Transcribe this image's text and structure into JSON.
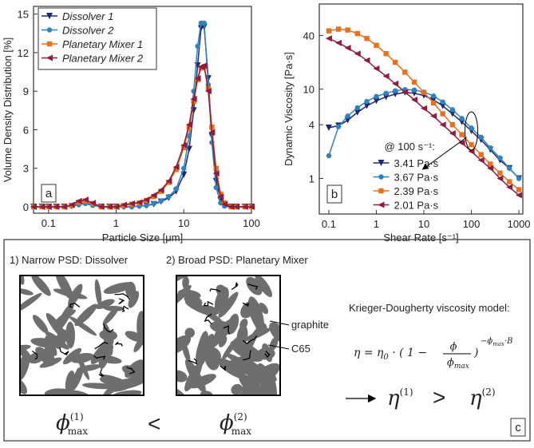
{
  "chart_data": [
    {
      "type": "line",
      "panel_label": "a",
      "x_label": "Particle Size [μm]",
      "y_label": "Volume Density Distribution [%]",
      "xlog": true,
      "xlim": [
        0.06,
        100
      ],
      "xticks": [
        0.1,
        1,
        10,
        100
      ],
      "ylim": [
        -0.5,
        15.6
      ],
      "yticks": [
        0,
        3,
        6,
        9,
        12,
        15
      ],
      "legend": "upper left",
      "x": [
        0.06,
        0.08,
        0.1,
        0.13,
        0.17,
        0.22,
        0.28,
        0.35,
        0.45,
        0.6,
        0.8,
        1,
        1.3,
        1.7,
        2.2,
        2.8,
        3.6,
        4.6,
        6,
        7.7,
        10,
        12,
        14,
        16,
        18,
        20,
        23,
        26,
        30,
        35,
        40,
        50,
        60,
        80,
        100
      ],
      "series": [
        {
          "name": "Dissolver 1",
          "color": "#1b2a6e",
          "marker": "triangle-down",
          "values": [
            0,
            0,
            0,
            0,
            0,
            0.05,
            0.2,
            0.3,
            0.15,
            0,
            0,
            0,
            0,
            0,
            0.05,
            0.1,
            0.2,
            0.4,
            0.7,
            1.2,
            2.5,
            4.5,
            7.5,
            11,
            13.9,
            14,
            10,
            5.5,
            2,
            0.5,
            0.1,
            0,
            0,
            0,
            0
          ]
        },
        {
          "name": "Dissolver 2",
          "color": "#2f82c0",
          "marker": "circle",
          "values": [
            0,
            0,
            0,
            0,
            0,
            0.05,
            0.15,
            0.25,
            0.1,
            0,
            0,
            0,
            0,
            0,
            0.05,
            0.1,
            0.25,
            0.45,
            0.8,
            1.4,
            3,
            5.5,
            9,
            12.5,
            14.3,
            14.3,
            9.5,
            5,
            1.5,
            0.3,
            0.05,
            0,
            0,
            0,
            0
          ]
        },
        {
          "name": "Planetary Mixer 1",
          "color": "#e8701e",
          "marker": "square",
          "values": [
            0,
            0,
            0,
            0,
            0,
            0.1,
            0.35,
            0.45,
            0.25,
            0,
            0,
            0,
            0.1,
            0.2,
            0.3,
            0.5,
            0.8,
            1.2,
            1.9,
            2.9,
            4.6,
            6.2,
            8.2,
            9.9,
            10.8,
            10.9,
            9.2,
            6.2,
            3,
            1,
            0.3,
            0,
            0,
            0,
            0
          ]
        },
        {
          "name": "Planetary Mixer 2",
          "color": "#8f1c3c",
          "marker": "triangle-left",
          "values": [
            0,
            0,
            0,
            0,
            0,
            0.15,
            0.45,
            0.55,
            0.3,
            0,
            0,
            0,
            0.15,
            0.25,
            0.35,
            0.55,
            0.9,
            1.3,
            2,
            3.1,
            4.8,
            6.4,
            8.4,
            10,
            10.9,
            11,
            9,
            5.8,
            2.6,
            0.8,
            0.2,
            0,
            0,
            0,
            0
          ]
        }
      ]
    },
    {
      "type": "line",
      "panel_label": "b",
      "x_label": "Shear Rate [s⁻¹]",
      "y_label": "Dynamic Viscosity [Pa·s]",
      "xlog": true,
      "ylog": true,
      "xlim": [
        0.063,
        1210
      ],
      "xticks": [
        0.1,
        1,
        10,
        100,
        1000
      ],
      "ylim": [
        0.4,
        90
      ],
      "yticks": [
        1,
        4,
        10,
        40
      ],
      "legend": "lower center",
      "legend_title": "@ 100 s⁻¹:",
      "x": [
        0.1,
        0.16,
        0.25,
        0.4,
        0.63,
        1,
        1.6,
        2.5,
        4,
        6.3,
        10,
        16,
        25,
        40,
        63,
        100,
        160,
        250,
        400,
        630,
        1000
      ],
      "series": [
        {
          "name": "3.41 Pa·s",
          "color": "#1b2a6e",
          "marker": "triangle-down",
          "values": [
            3.7,
            3.9,
            4.5,
            5.5,
            6.5,
            7.4,
            8.2,
            8.8,
            9.2,
            9.0,
            8.5,
            7.6,
            6.5,
            5.3,
            4.3,
            3.41,
            2.7,
            2.1,
            1.6,
            1.3,
            1.0
          ]
        },
        {
          "name": "3.67 Pa·s",
          "color": "#2f82c0",
          "marker": "circle",
          "values": [
            1.8,
            3.8,
            5.0,
            6.2,
            7.3,
            8.3,
            9.0,
            9.6,
            9.9,
            9.8,
            9.3,
            8.4,
            7.2,
            5.9,
            4.7,
            3.67,
            2.9,
            2.2,
            1.7,
            1.3,
            1.0
          ]
        },
        {
          "name": "2.39 Pa·s",
          "color": "#e8701e",
          "marker": "square",
          "values": [
            45,
            47,
            46,
            42,
            37,
            31,
            25,
            20,
            15.5,
            12,
            9.2,
            7,
            5.3,
            4.0,
            3.1,
            2.39,
            1.85,
            1.45,
            1.15,
            0.92,
            0.75
          ]
        },
        {
          "name": "2.01 Pa·s",
          "color": "#8f1c3c",
          "marker": "triangle-left",
          "values": [
            37,
            33,
            29,
            25,
            21,
            17,
            14,
            11.5,
            9.3,
            7.6,
            6.1,
            5.0,
            4.0,
            3.2,
            2.5,
            2.01,
            1.6,
            1.3,
            1.0,
            0.8,
            0.65
          ]
        }
      ]
    }
  ],
  "diagram": {
    "panel_label": "c",
    "left_title": "1) Narrow PSD: Dissolver",
    "right_title": "2) Broad PSD: Planetary Mixer",
    "graphite": "graphite",
    "c65": "C65",
    "model_title": "Krieger-Dougherty viscosity model:",
    "formula": {
      "lhs": "η = η",
      "lhs_sub": "0",
      "mid": " · ( 1 − ",
      "num": "ϕ",
      "den": "ϕ",
      "den_sub": "max",
      "close": ")",
      "exp": "−ϕ",
      "exp_sub": "max",
      "exp_end": "·B"
    },
    "eta1": {
      "symbol": "η",
      "sup": "(1)"
    },
    "gt": ">",
    "eta2": {
      "symbol": "η",
      "sup": "(2)"
    },
    "phi1": {
      "symbol": "ϕ",
      "sup": "(1)",
      "sub": "max"
    },
    "lt": "<",
    "phi2": {
      "symbol": "ϕ",
      "sup": "(2)",
      "sub": "max"
    }
  }
}
